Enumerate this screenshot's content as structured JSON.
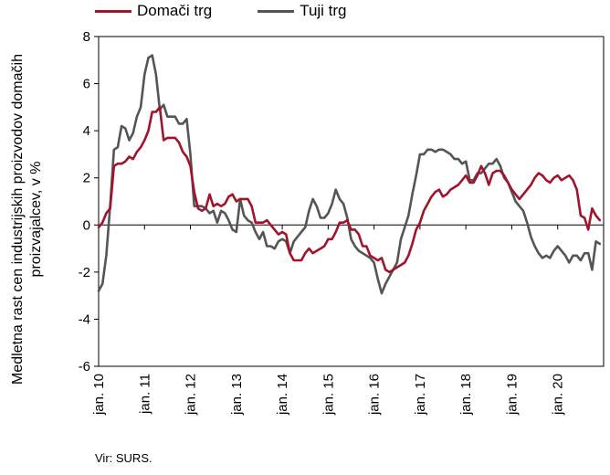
{
  "chart_data": {
    "type": "line",
    "ylabel": "Medletna rast cen industrijskih proizvodov domačih proizvajalcev, v %",
    "source": "Vir: SURS.",
    "ylim": [
      -6,
      8
    ],
    "yticks": [
      -6,
      -4,
      -2,
      0,
      2,
      4,
      6,
      8
    ],
    "xticks": [
      "jan. 10",
      "jan. 11",
      "jan. 12",
      "jan. 13",
      "jan. 14",
      "jan. 15",
      "jan. 16",
      "jan. 17",
      "jan. 18",
      "jan. 19",
      "jan. 20"
    ],
    "x_start": "2010-01",
    "x_end": "2020-08",
    "grid": false,
    "legend_position": "top",
    "series": [
      {
        "name": "Domači trg",
        "color": "#a0142c",
        "values": [
          -0.1,
          0.1,
          0.5,
          0.7,
          2.5,
          2.6,
          2.6,
          2.7,
          2.9,
          2.8,
          3.1,
          3.3,
          3.6,
          4.0,
          4.8,
          4.8,
          5.0,
          3.6,
          3.7,
          3.7,
          3.7,
          3.5,
          3.1,
          2.9,
          2.5,
          1.4,
          0.7,
          0.6,
          0.7,
          1.3,
          0.8,
          0.9,
          0.8,
          0.9,
          1.2,
          1.3,
          1.0,
          1.1,
          1.1,
          1.1,
          0.8,
          0.1,
          0.1,
          0.1,
          0.2,
          0.0,
          -0.2,
          -0.4,
          -0.3,
          -0.4,
          -1.2,
          -1.5,
          -1.5,
          -1.5,
          -1.2,
          -1.0,
          -1.2,
          -1.1,
          -1.0,
          -0.9,
          -0.6,
          -0.6,
          -0.3,
          0.1,
          0.1,
          0.2,
          -0.2,
          -0.2,
          -0.4,
          -0.9,
          -0.9,
          -1.3,
          -1.4,
          -1.5,
          -1.4,
          -1.9,
          -2.0,
          -1.9,
          -1.8,
          -1.7,
          -1.6,
          -1.3,
          -0.8,
          -0.2,
          0.1,
          0.6,
          0.9,
          1.2,
          1.4,
          1.5,
          1.2,
          1.3,
          1.5,
          1.6,
          1.7,
          1.9,
          2.1,
          1.8,
          1.8,
          2.1,
          2.5,
          2.2,
          1.7,
          2.2,
          2.3,
          2.3,
          2.1,
          1.8,
          1.5,
          1.3,
          1.1,
          1.3,
          1.5,
          1.7,
          2.0,
          2.2,
          2.1,
          1.9,
          1.8,
          2.0,
          2.1,
          1.9,
          2.0,
          2.1,
          1.9,
          1.5,
          0.4,
          0.3,
          -0.2,
          0.7,
          0.4,
          0.2
        ]
      },
      {
        "name": "Tuji trg",
        "color": "#555555",
        "values": [
          -2.8,
          -2.5,
          -1.3,
          0.8,
          3.2,
          3.3,
          4.2,
          4.1,
          3.6,
          3.9,
          4.6,
          5.0,
          6.4,
          7.1,
          7.2,
          6.4,
          4.9,
          5.1,
          4.6,
          4.6,
          4.6,
          4.3,
          4.3,
          4.5,
          3.0,
          0.8,
          0.8,
          0.8,
          0.7,
          0.5,
          0.6,
          0.1,
          0.6,
          0.5,
          0.2,
          -0.2,
          -0.3,
          1.1,
          0.4,
          0.2,
          0.1,
          -0.3,
          -0.6,
          -0.3,
          -0.9,
          -0.9,
          -1.0,
          -0.7,
          -0.6,
          -0.7,
          -1.2,
          -0.7,
          -0.5,
          -0.3,
          -0.1,
          0.6,
          1.1,
          0.8,
          0.3,
          0.3,
          0.5,
          0.9,
          1.5,
          1.1,
          0.9,
          0.3,
          -0.6,
          -0.9,
          -1.1,
          -1.2,
          -1.3,
          -1.4,
          -1.6,
          -2.3,
          -2.9,
          -2.5,
          -2.2,
          -1.9,
          -1.6,
          -0.6,
          -0.1,
          0.4,
          1.3,
          2.1,
          3.0,
          3.0,
          3.2,
          3.2,
          3.1,
          3.2,
          3.2,
          3.1,
          3.0,
          2.8,
          2.8,
          2.6,
          2.7,
          1.9,
          1.9,
          2.2,
          2.2,
          2.4,
          2.6,
          2.6,
          2.8,
          2.5,
          2.0,
          1.8,
          1.4,
          1.0,
          0.8,
          0.6,
          0.1,
          -0.5,
          -0.9,
          -1.2,
          -1.4,
          -1.3,
          -1.4,
          -1.1,
          -0.9,
          -1.1,
          -1.3,
          -1.6,
          -1.3,
          -1.3,
          -1.5,
          -1.2,
          -1.2,
          -1.9,
          -0.7,
          -0.8
        ]
      }
    ]
  }
}
